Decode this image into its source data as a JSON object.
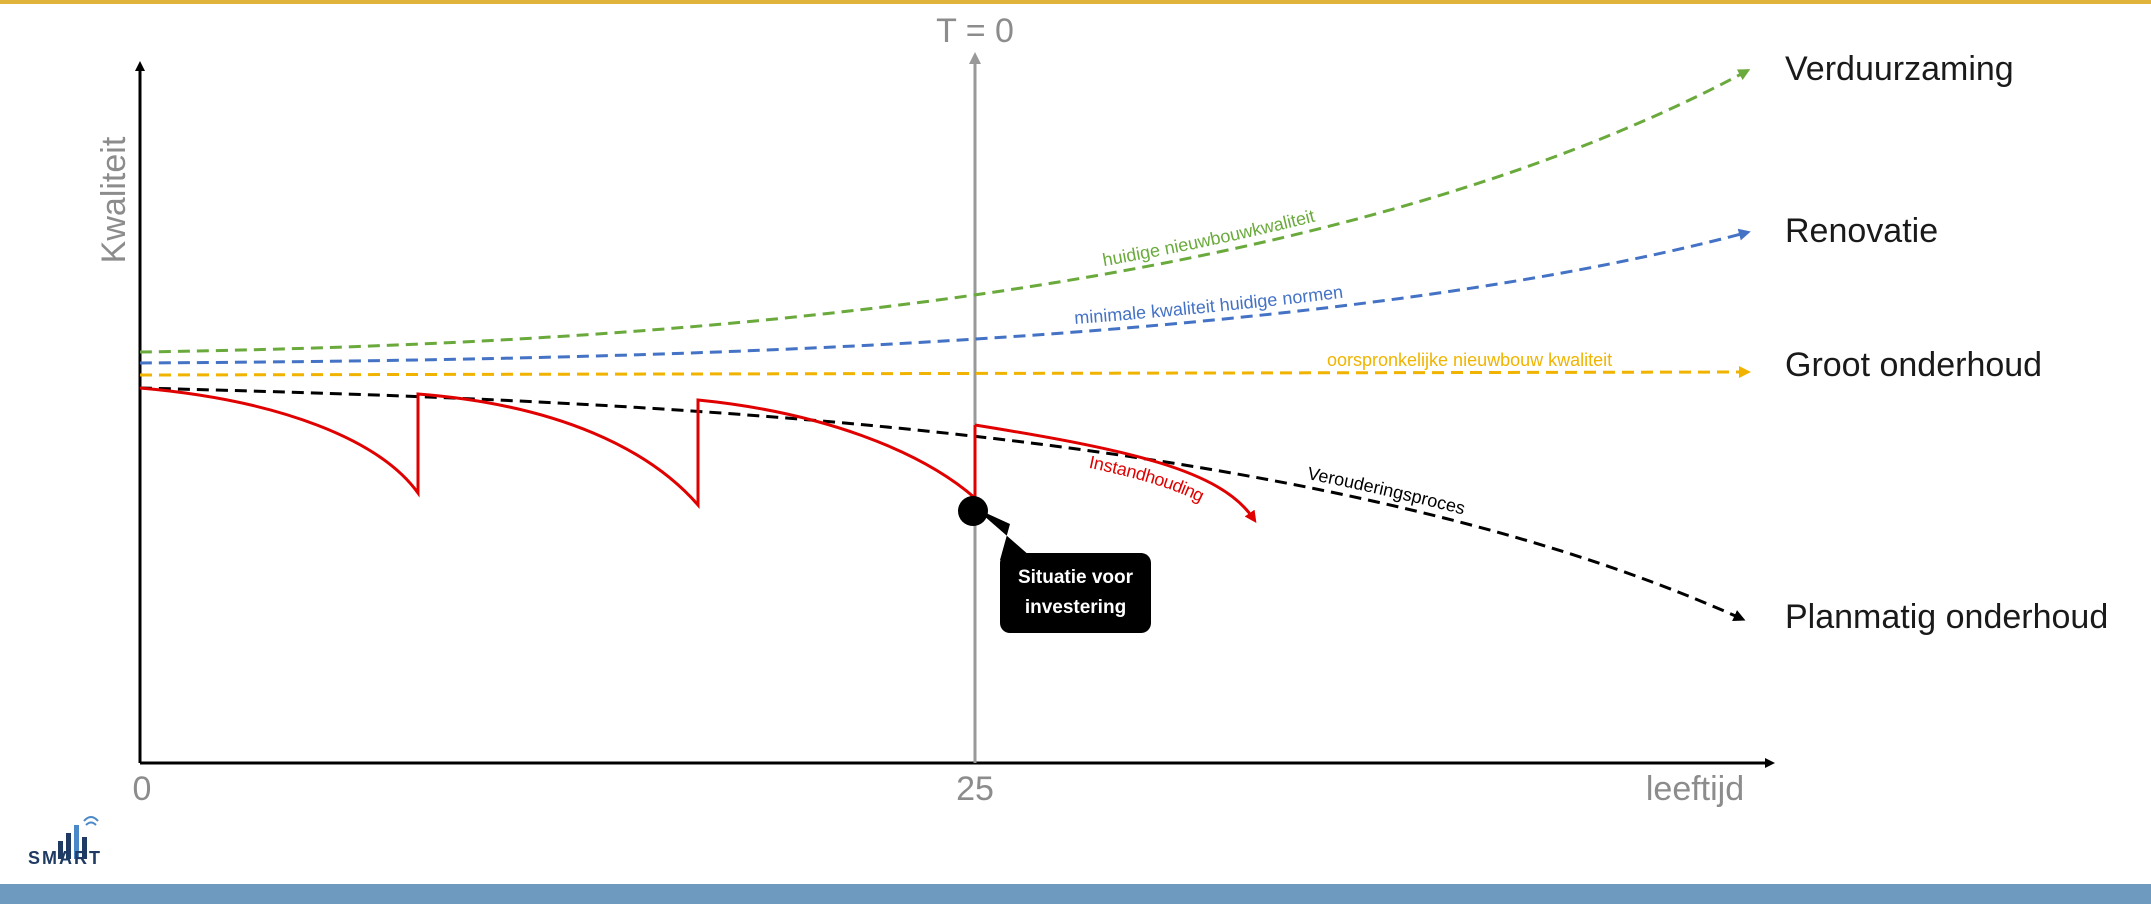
{
  "colors": {
    "top_border": "#e0b43a",
    "bottom_bar": "#6f9ac0",
    "axis": "#000000",
    "t0_line": "#999999",
    "axis_text": "#8c8c8c",
    "green": "#6aaa3c",
    "blue": "#4472c4",
    "orange": "#f0b400",
    "red": "#e00000",
    "black": "#000000"
  },
  "axes": {
    "y_label": "Kwaliteit",
    "x_label": "leeftijd",
    "x_tick_0": "0",
    "x_tick_25": "25",
    "t0_label": "T = 0"
  },
  "curves": {
    "green_label": "huidige nieuwbouwkwaliteit",
    "blue_label": "minimale kwaliteit huidige normen",
    "orange_label": "oorspronkelijke nieuwbouw kwaliteit",
    "red_label": "Instandhouding",
    "black_label": "Verouderingsproces"
  },
  "right_labels": {
    "verduurzaming": "Verduurzaming",
    "renovatie": "Renovatie",
    "groot_onderhoud": "Groot onderhoud",
    "planmatig_onderhoud": "Planmatig onderhoud"
  },
  "callout": {
    "line1": "Situatie voor",
    "line2": "investering"
  },
  "logo": {
    "text": "SMART",
    "icon": "bar-chart-signal-icon"
  }
}
